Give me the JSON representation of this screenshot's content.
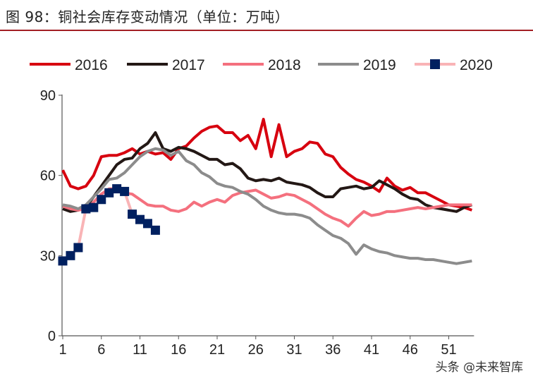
{
  "title": "图 98：铜社会库存变动情况（单位：万吨）",
  "watermark": "头条 @未来智库",
  "chart_data": {
    "type": "line",
    "title": "图 98：铜社会库存变动情况（单位：万吨）",
    "xlabel": "",
    "ylabel": "",
    "xlim": [
      1,
      54
    ],
    "ylim": [
      0,
      90
    ],
    "xticks": [
      1,
      6,
      11,
      16,
      21,
      26,
      31,
      36,
      41,
      46,
      51
    ],
    "yticks": [
      0,
      30,
      60,
      90
    ],
    "grid": false,
    "legend_position": "top",
    "series": [
      {
        "name": "2016",
        "color": "#d7000f",
        "marker": "none",
        "values": [
          62,
          56,
          55,
          56,
          60,
          67,
          67.5,
          67.5,
          68.5,
          70,
          68,
          69,
          68,
          68.5,
          66,
          70,
          71,
          74,
          76.5,
          78,
          78.5,
          76,
          76,
          73,
          75,
          70,
          81,
          67,
          79,
          67,
          69,
          70,
          72.5,
          72,
          68,
          67,
          63,
          60.5,
          58.5,
          57.5,
          56,
          54,
          59,
          56,
          54.5,
          55.5,
          53.5,
          53.5,
          52,
          50.5,
          49,
          48.5,
          48,
          47
        ]
      },
      {
        "name": "2017",
        "color": "#231815",
        "marker": "none",
        "values": [
          47.5,
          46.5,
          47,
          48,
          52,
          56,
          60,
          64,
          66,
          66.5,
          70,
          72,
          76,
          70,
          69,
          70.5,
          70,
          69,
          67.5,
          66,
          66,
          64,
          64.5,
          62.5,
          59,
          58,
          58.5,
          58,
          59,
          57.5,
          57,
          56.5,
          55.5,
          53.5,
          52,
          52,
          55,
          55.5,
          56,
          55,
          55.5,
          58,
          56.5,
          55,
          53,
          51.5,
          51,
          49,
          48,
          47.5,
          47,
          46.5,
          48,
          49
        ]
      },
      {
        "name": "2018",
        "color": "#f4707e",
        "marker": "none",
        "values": [
          48.5,
          47.5,
          47,
          47.5,
          50,
          53,
          55,
          55,
          53.5,
          53,
          51,
          49,
          48.5,
          48.5,
          47,
          46.5,
          47.5,
          50,
          48.5,
          50,
          51,
          50,
          52.5,
          53.5,
          54,
          54.5,
          53,
          51.5,
          52,
          53,
          52.5,
          51,
          49.5,
          47.5,
          45.5,
          44,
          43,
          41,
          44,
          46.5,
          45,
          45.5,
          46.5,
          46.5,
          47,
          47.5,
          48,
          47.5,
          48,
          48.5,
          49,
          49,
          49,
          49
        ]
      },
      {
        "name": "2019",
        "color": "#8c8c8c",
        "marker": "none",
        "values": [
          49,
          48.5,
          47.5,
          49,
          52,
          55,
          58.5,
          59,
          61,
          64,
          67,
          69,
          70,
          69.5,
          67.5,
          69,
          65.5,
          64,
          61,
          59.5,
          57,
          56,
          55.5,
          54,
          53,
          51,
          48.5,
          47,
          46,
          45.5,
          45.5,
          45,
          44,
          41.5,
          39.5,
          37.5,
          36.5,
          34.5,
          30.5,
          34,
          32.5,
          31.5,
          31,
          30,
          29.5,
          29,
          29,
          28.5,
          28.5,
          28,
          27.5,
          27,
          27.5,
          28
        ]
      },
      {
        "name": "2020",
        "color": "#f9b4b6",
        "marker": "square",
        "marker_color": "#002060",
        "values": [
          28,
          30,
          33,
          47.5,
          48,
          51,
          53.5,
          55,
          54,
          45.5,
          43.5,
          42,
          39.5
        ]
      }
    ]
  }
}
